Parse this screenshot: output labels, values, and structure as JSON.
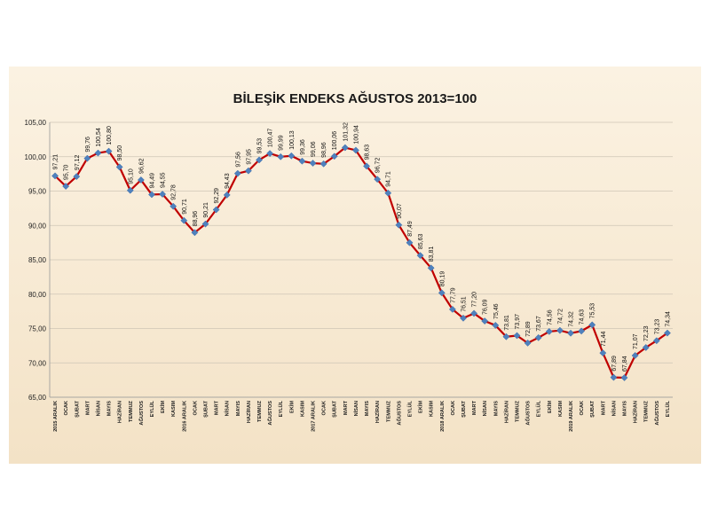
{
  "chart_data": {
    "type": "line",
    "title": "BİLEŞİK ENDEKS AĞUSTOS 2013=100",
    "xlabel": "",
    "ylabel": "",
    "ylim": [
      65,
      105
    ],
    "yticks": [
      "65,00",
      "70,00",
      "75,00",
      "80,00",
      "85,00",
      "90,00",
      "95,00",
      "100,00",
      "105,00"
    ],
    "grid": true,
    "line_color": "#c00000",
    "marker_color": "#4f81bd",
    "categories": [
      "2015 ARALIK",
      "OCAK",
      "ŞUBAT",
      "MART",
      "NİSAN",
      "MAYIS",
      "HAZİRAN",
      "TEMMUZ",
      "AĞUSTOS",
      "EYLÜL",
      "EKİM",
      "KASIM",
      "2016 ARALIK",
      "OCAK",
      "ŞUBAT",
      "MART",
      "NİSAN",
      "MAYIS",
      "HAZİRAN",
      "TEMMUZ",
      "AĞUSTOS",
      "EYLÜL",
      "EKİM",
      "KASIM",
      "2017 ARALIK",
      "OCAK",
      "ŞUBAT",
      "MART",
      "NİSAN",
      "MAYIS",
      "HAZİRAN",
      "TEMMUZ",
      "AĞUSTOS",
      "EYLÜL",
      "EKİM",
      "KASIM",
      "2018 ARALIK",
      "OCAK",
      "ŞUBAT",
      "MART",
      "NİSAN",
      "MAYIS",
      "HAZİRAN",
      "TEMMUZ",
      "AĞUSTOS",
      "EYLÜL",
      "EKİM",
      "KASIM",
      "2019 ARALIK",
      "OCAK",
      "ŞUBAT",
      "MART",
      "NİSAN",
      "MAYIS",
      "HAZİRAN",
      "TEMMUZ",
      "AĞUSTOS",
      "EYLÜL"
    ],
    "values": [
      97.21,
      95.7,
      97.12,
      99.76,
      100.54,
      100.8,
      98.5,
      95.1,
      96.62,
      94.49,
      94.55,
      92.78,
      90.71,
      88.96,
      90.21,
      92.29,
      94.43,
      97.56,
      97.95,
      99.53,
      100.47,
      99.99,
      100.13,
      99.36,
      99.06,
      98.96,
      100.06,
      101.32,
      100.94,
      98.63,
      96.72,
      94.71,
      90.07,
      87.49,
      85.63,
      83.81,
      80.19,
      77.79,
      76.51,
      77.2,
      76.09,
      75.46,
      73.81,
      73.97,
      72.89,
      73.67,
      74.56,
      74.72,
      74.32,
      74.63,
      75.53,
      71.44,
      67.89,
      67.84,
      71.07,
      72.23,
      73.23,
      74.34
    ],
    "labels": [
      "97,21",
      "95,70",
      "97,12",
      "99,76",
      "100,54",
      "100,80",
      "98,50",
      "95,10",
      "96,62",
      "94,49",
      "94,55",
      "92,78",
      "90,71",
      "88,96",
      "90,21",
      "92,29",
      "94,43",
      "97,56",
      "97,95",
      "99,53",
      "100,47",
      "99,99",
      "100,13",
      "99,36",
      "99,06",
      "98,96",
      "100,06",
      "101,32",
      "100,94",
      "98,63",
      "96,72",
      "94,71",
      "90,07",
      "87,49",
      "85,63",
      "83,81",
      "80,19",
      "77,79",
      "76,51",
      "77,20",
      "76,09",
      "75,46",
      "73,81",
      "73,97",
      "72,89",
      "73,67",
      "74,56",
      "74,72",
      "74,32",
      "74,63",
      "75,53",
      "71,44",
      "67,89",
      "67,84",
      "71,07",
      "72,23",
      "73,23",
      "74,34"
    ]
  }
}
